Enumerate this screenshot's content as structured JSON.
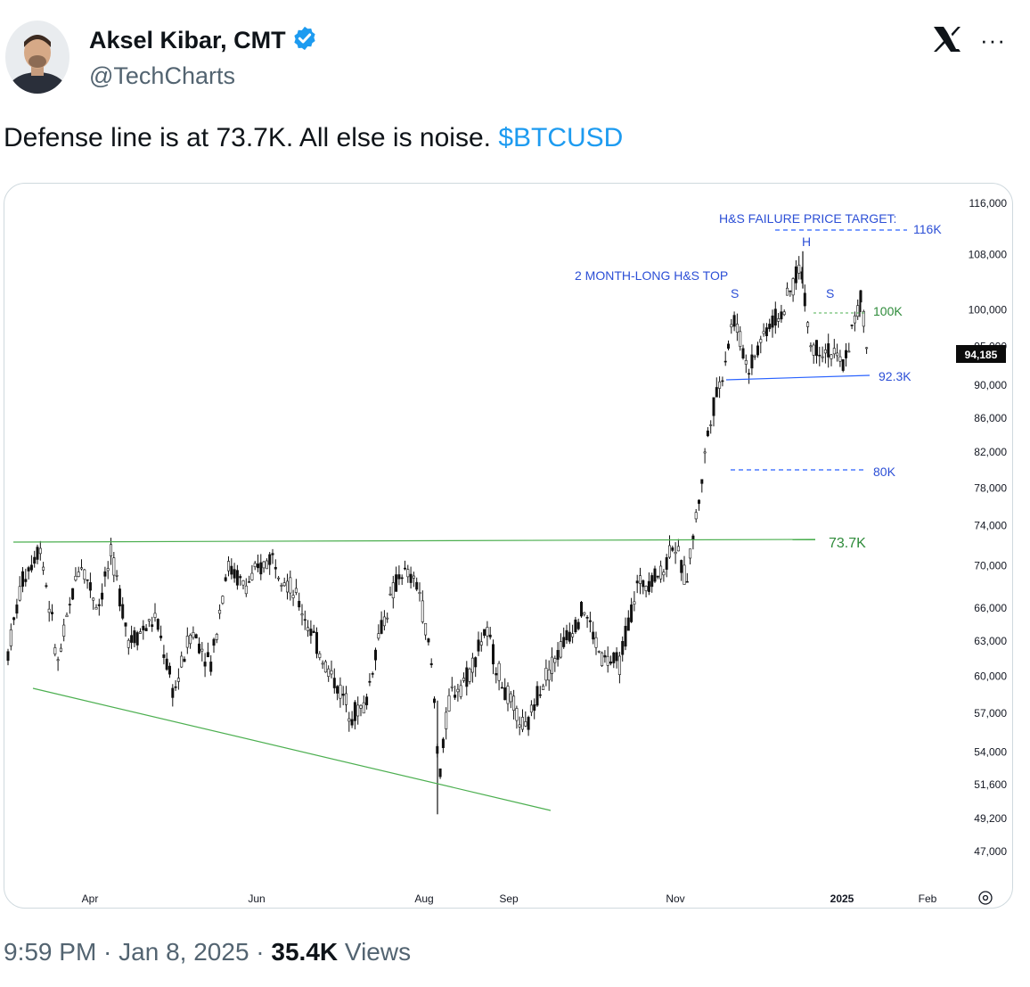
{
  "author": {
    "name": "Aksel Kibar, CMT",
    "handle": "@TechCharts",
    "verified_color": "#1d9bf0"
  },
  "header_icons": [
    "x-logo-icon",
    "more-icon"
  ],
  "more_label": "···",
  "tweet": {
    "text": "Defense line is at 73.7K. All else is noise. ",
    "cashtag": "$BTCUSD",
    "time": "9:59 PM",
    "date": "Jan 8, 2025",
    "views_count": "35.4K",
    "views_label": "Views"
  },
  "chart_data": {
    "type": "candlestick",
    "symbol": "BTCUSD",
    "scale": "log",
    "ylim": [
      44500,
      118500
    ],
    "y_ticks": [
      "116,000",
      "108,000",
      "100,000",
      "95,000",
      "90,000",
      "86,000",
      "82,000",
      "78,000",
      "74,000",
      "70,000",
      "66,000",
      "63,000",
      "60,000",
      "57,000",
      "54,000",
      "51,600",
      "49,200",
      "47,000"
    ],
    "x_ticks": [
      "Apr",
      "Jun",
      "Aug",
      "Sep",
      "Nov",
      "2025",
      "Feb"
    ],
    "last_price": "94,185",
    "annotations": {
      "hs_title": "2 MONTH-LONG H&S TOP",
      "target_title": "H&S FAILURE PRICE TARGET:",
      "target_label": "116K",
      "head_label": "H",
      "left_shoulder_label": "S",
      "right_shoulder_label": "S",
      "level_100k": "100K",
      "neckline": "92.3K",
      "level_80k": "80K",
      "level_737k": "73.7K"
    },
    "colors": {
      "candle": "#111111",
      "green": "#4caf50",
      "blue": "#2962ff",
      "label_green": "#2e8b3a",
      "label_blue": "#2c4fd6"
    }
  }
}
